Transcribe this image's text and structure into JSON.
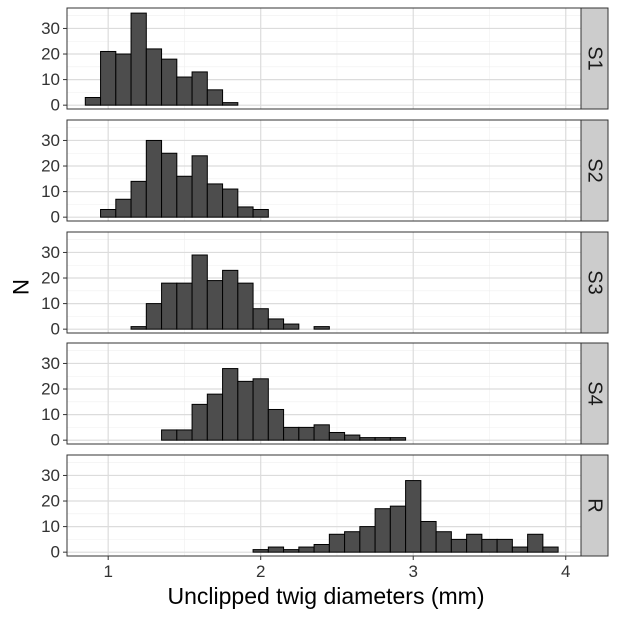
{
  "chart_data": {
    "type": "bar",
    "layout": "faceted-histogram",
    "xlabel": "Unclipped twig diameters (mm)",
    "ylabel": "N",
    "xlim": [
      0.73,
      4.1
    ],
    "ylim": [
      -1.5,
      38
    ],
    "bin_width": 0.1,
    "x_ticks": [
      1,
      2,
      3,
      4
    ],
    "x_tick_labels": [
      "1",
      "2",
      "3",
      "4"
    ],
    "y_ticks": [
      0,
      10,
      20,
      30
    ],
    "y_tick_labels": [
      "0",
      "10",
      "20",
      "30"
    ],
    "grid": true,
    "legend": "none",
    "colors": {
      "bar_fill": "#4d4d4d",
      "bar_stroke": "#000000",
      "strip_fill": "#cccccc",
      "grid_major": "#dcdcdc",
      "grid_minor": "#efefef"
    },
    "panels": [
      {
        "label": "S1",
        "bins": [
          {
            "x": 0.9,
            "count": 3
          },
          {
            "x": 1.0,
            "count": 21
          },
          {
            "x": 1.1,
            "count": 20
          },
          {
            "x": 1.2,
            "count": 36
          },
          {
            "x": 1.3,
            "count": 22
          },
          {
            "x": 1.4,
            "count": 18
          },
          {
            "x": 1.5,
            "count": 11
          },
          {
            "x": 1.6,
            "count": 13
          },
          {
            "x": 1.7,
            "count": 6
          },
          {
            "x": 1.8,
            "count": 1
          }
        ]
      },
      {
        "label": "S2",
        "bins": [
          {
            "x": 1.0,
            "count": 3
          },
          {
            "x": 1.1,
            "count": 7
          },
          {
            "x": 1.2,
            "count": 14
          },
          {
            "x": 1.3,
            "count": 30
          },
          {
            "x": 1.4,
            "count": 25
          },
          {
            "x": 1.5,
            "count": 16
          },
          {
            "x": 1.6,
            "count": 24
          },
          {
            "x": 1.7,
            "count": 13
          },
          {
            "x": 1.8,
            "count": 11
          },
          {
            "x": 1.9,
            "count": 4
          },
          {
            "x": 2.0,
            "count": 3
          }
        ]
      },
      {
        "label": "S3",
        "bins": [
          {
            "x": 1.2,
            "count": 1
          },
          {
            "x": 1.3,
            "count": 10
          },
          {
            "x": 1.4,
            "count": 18
          },
          {
            "x": 1.5,
            "count": 18
          },
          {
            "x": 1.6,
            "count": 29
          },
          {
            "x": 1.7,
            "count": 19
          },
          {
            "x": 1.8,
            "count": 23
          },
          {
            "x": 1.9,
            "count": 18
          },
          {
            "x": 2.0,
            "count": 8
          },
          {
            "x": 2.1,
            "count": 4
          },
          {
            "x": 2.2,
            "count": 2
          },
          {
            "x": 2.4,
            "count": 1
          }
        ]
      },
      {
        "label": "S4",
        "bins": [
          {
            "x": 1.4,
            "count": 4
          },
          {
            "x": 1.5,
            "count": 4
          },
          {
            "x": 1.6,
            "count": 14
          },
          {
            "x": 1.7,
            "count": 18
          },
          {
            "x": 1.8,
            "count": 28
          },
          {
            "x": 1.9,
            "count": 23
          },
          {
            "x": 2.0,
            "count": 24
          },
          {
            "x": 2.1,
            "count": 12
          },
          {
            "x": 2.2,
            "count": 5
          },
          {
            "x": 2.3,
            "count": 5
          },
          {
            "x": 2.4,
            "count": 6
          },
          {
            "x": 2.5,
            "count": 3
          },
          {
            "x": 2.6,
            "count": 2
          },
          {
            "x": 2.7,
            "count": 1
          },
          {
            "x": 2.8,
            "count": 1
          },
          {
            "x": 2.9,
            "count": 1
          }
        ]
      },
      {
        "label": "R",
        "bins": [
          {
            "x": 2.0,
            "count": 1
          },
          {
            "x": 2.1,
            "count": 2
          },
          {
            "x": 2.2,
            "count": 1
          },
          {
            "x": 2.3,
            "count": 2
          },
          {
            "x": 2.4,
            "count": 3
          },
          {
            "x": 2.5,
            "count": 7
          },
          {
            "x": 2.6,
            "count": 8
          },
          {
            "x": 2.7,
            "count": 10
          },
          {
            "x": 2.8,
            "count": 17
          },
          {
            "x": 2.9,
            "count": 18
          },
          {
            "x": 3.0,
            "count": 28
          },
          {
            "x": 3.1,
            "count": 12
          },
          {
            "x": 3.2,
            "count": 8
          },
          {
            "x": 3.3,
            "count": 5
          },
          {
            "x": 3.4,
            "count": 7
          },
          {
            "x": 3.5,
            "count": 5
          },
          {
            "x": 3.6,
            "count": 5
          },
          {
            "x": 3.7,
            "count": 2
          },
          {
            "x": 3.8,
            "count": 7
          },
          {
            "x": 3.9,
            "count": 2
          }
        ]
      }
    ]
  }
}
